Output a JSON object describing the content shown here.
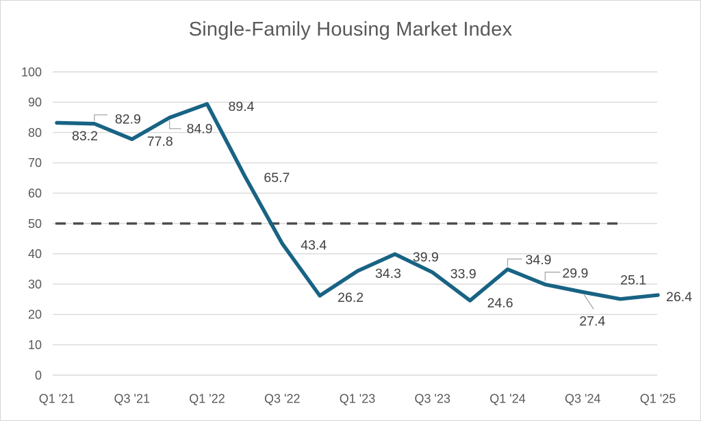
{
  "chart_data": {
    "type": "line",
    "title": "Single-Family Housing Market Index",
    "x_tick_labels": [
      "Q1 '21",
      "Q3 '21",
      "Q1 '22",
      "Q3 '22",
      "Q1 '23",
      "Q3 '23",
      "Q1 '24",
      "Q3 '24",
      "Q1 '25"
    ],
    "x_labels_every_n_points": 2,
    "values": [
      83.2,
      82.9,
      77.8,
      84.9,
      89.4,
      65.7,
      43.4,
      26.2,
      34.3,
      39.9,
      33.9,
      24.6,
      34.9,
      29.9,
      27.4,
      25.1,
      26.4
    ],
    "data_labels_shown": true,
    "ylim": [
      0,
      100
    ],
    "y_tick_step": 10,
    "y_tick_labels": [
      "0",
      "10",
      "20",
      "30",
      "40",
      "50",
      "60",
      "70",
      "80",
      "90",
      "100"
    ],
    "reference_line": {
      "value": 50,
      "style": "dashed"
    },
    "grid": "horizontal",
    "legend": "none",
    "colors": {
      "series": "#186384",
      "reference": "#4d4d4d",
      "grid": "#d9d9d9",
      "title": "#595959",
      "axis_labels": "#595959",
      "data_labels": "#404040",
      "leader_lines": "#a6a6a6",
      "background": "#ffffff",
      "frame_border": "#d5d5d5"
    }
  }
}
